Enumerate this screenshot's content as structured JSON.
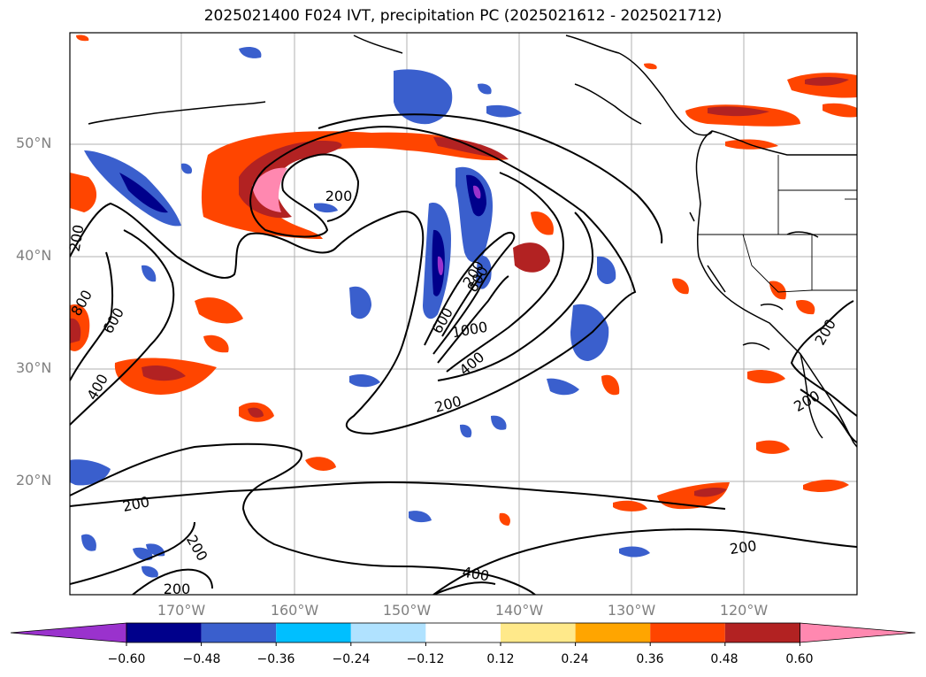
{
  "title": "2025021400 F024 IVT, precipitation PC (2025021612 - 2025021712)",
  "lat_labels": [
    "50°N",
    "40°N",
    "30°N",
    "20°N"
  ],
  "lon_labels": [
    "170°W",
    "160°W",
    "150°W",
    "140°W",
    "130°W",
    "120°W"
  ],
  "contour_labels": [
    "200",
    "200",
    "200",
    "200",
    "200",
    "200",
    "200",
    "200",
    "200",
    "200",
    "400",
    "400",
    "400",
    "600",
    "600",
    "800",
    "800",
    "1000"
  ],
  "colorbar": {
    "ticks": [
      "−0.60",
      "−0.48",
      "−0.36",
      "−0.24",
      "−0.12",
      "0.12",
      "0.24",
      "0.36",
      "0.48",
      "0.60"
    ],
    "colors": [
      "#9a32cd",
      "#00008b",
      "#3a5fcd",
      "#00bfff",
      "#b0e2ff",
      "#ffffff",
      "#ffe98a",
      "#ffa500",
      "#ff4500",
      "#b22222",
      "#ff88b0"
    ]
  },
  "colors": {
    "grid": "#b0b0b0",
    "contour": "#000000",
    "coast": "#000000"
  }
}
